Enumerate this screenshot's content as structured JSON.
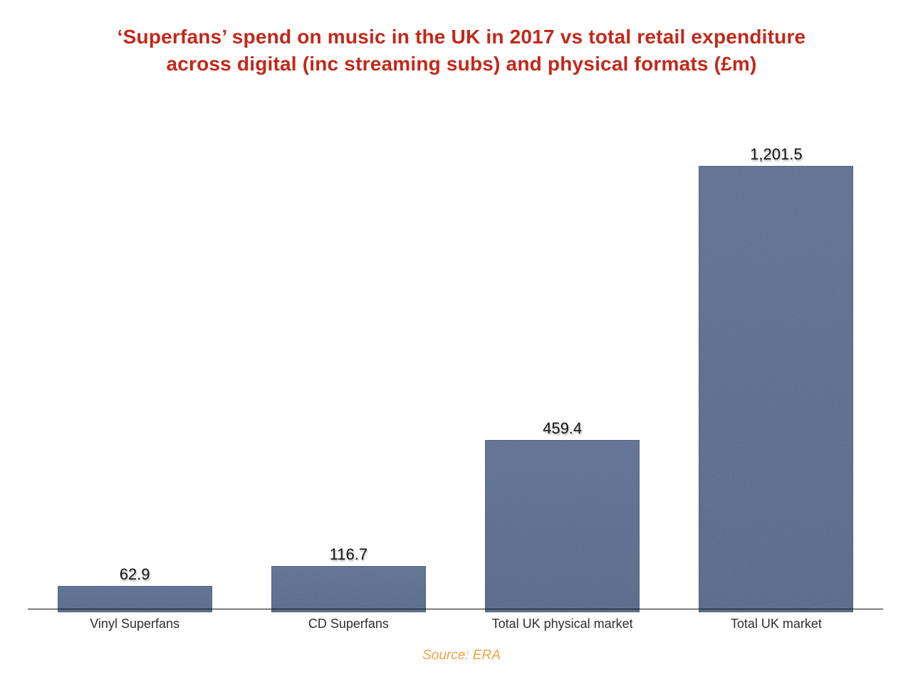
{
  "chart_data": {
    "type": "bar",
    "title": "‘Superfans’ spend on music in the UK in 2017 vs total retail expenditure across digital (inc streaming subs) and physical formats (£m)",
    "title_lines": [
      "‘Superfans’ spend on music in the UK in 2017 vs total retail expenditure",
      "across digital (inc streaming subs) and physical formats (£m)"
    ],
    "categories": [
      "Vinyl Superfans",
      "CD Superfans",
      "Total UK physical market",
      "Total UK market"
    ],
    "values": [
      62.9,
      116.7,
      459.4,
      1201.5
    ],
    "value_labels": [
      "62.9",
      "116.7",
      "459.4",
      "1,201.5"
    ],
    "xlabel": "",
    "ylabel": "",
    "ylim": [
      0,
      1250
    ],
    "grid": false,
    "legend": false,
    "source": "Source: ERA",
    "colors": {
      "bar_light": "#5a6e92",
      "bar": "#526688",
      "title": "#c3281a",
      "source": "#f0a346",
      "axis": "#111111",
      "category_label": "#2e2e2e",
      "value_label": "#131313",
      "background": "#ffffff"
    }
  }
}
